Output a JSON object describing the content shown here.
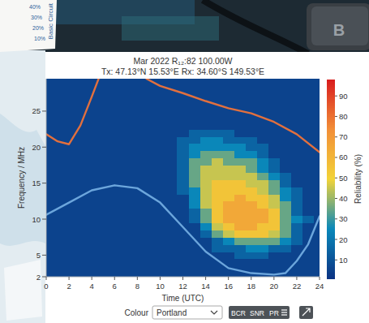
{
  "chart_data": {
    "type": "contour",
    "title": "Mar 2022 R₁₂:82 100.00W",
    "subtitle": "Tx: 47.13°N 15.53°E Rx: 34.60°S 149.53°E",
    "x_label": "Time (UTC)",
    "y_label": "Frequency / MHz",
    "colorbar_title": "Reliability (%)",
    "xlim": [
      0,
      24
    ],
    "ylim": [
      2,
      29.5
    ],
    "xticks": [
      0,
      2,
      4,
      6,
      8,
      10,
      12,
      14,
      16,
      18,
      20,
      22,
      24
    ],
    "yticks": [
      2,
      5,
      10,
      15,
      20,
      25
    ],
    "zlim": [
      1,
      98
    ],
    "zticks": [
      10,
      20,
      30,
      40,
      50,
      60,
      70,
      80,
      90
    ],
    "grid": false,
    "x": [
      0,
      1,
      2,
      3,
      4,
      5,
      6,
      7,
      8,
      9,
      10,
      11,
      12,
      13,
      14,
      15,
      16,
      17,
      18,
      19,
      20,
      21,
      22,
      23,
      24
    ],
    "y": [
      2,
      3,
      4,
      5,
      6,
      7,
      8,
      9,
      10,
      11,
      12,
      13,
      14,
      15,
      16,
      17,
      18,
      19,
      20,
      21,
      22,
      23,
      24,
      25,
      26,
      27,
      28,
      29
    ],
    "z": [
      [
        2,
        2,
        2,
        2,
        2,
        2,
        2,
        2,
        2,
        2,
        2,
        2,
        2,
        2,
        2,
        2,
        2,
        2,
        2,
        2,
        2,
        2,
        2,
        2,
        2
      ],
      [
        2,
        2,
        2,
        2,
        2,
        2,
        2,
        2,
        2,
        2,
        2,
        2,
        2,
        2,
        2,
        2,
        2,
        2,
        2,
        2,
        2,
        2,
        2,
        2,
        2
      ],
      [
        2,
        2,
        2,
        2,
        2,
        2,
        2,
        2,
        2,
        2,
        2,
        2,
        2,
        2,
        2,
        2,
        3,
        4,
        4,
        4,
        3,
        2,
        2,
        2,
        2
      ],
      [
        2,
        2,
        2,
        2,
        2,
        2,
        2,
        2,
        2,
        2,
        2,
        2,
        2,
        2,
        2,
        5,
        8,
        10,
        11,
        10,
        9,
        6,
        3,
        2,
        2
      ],
      [
        2,
        2,
        2,
        2,
        2,
        2,
        2,
        2,
        2,
        2,
        2,
        2,
        2,
        2,
        4,
        10,
        15,
        18,
        20,
        20,
        18,
        13,
        7,
        2,
        2
      ],
      [
        2,
        2,
        2,
        2,
        2,
        2,
        2,
        2,
        2,
        2,
        2,
        2,
        2,
        2,
        8,
        18,
        28,
        32,
        34,
        33,
        30,
        22,
        12,
        4,
        2
      ],
      [
        2,
        2,
        2,
        2,
        2,
        2,
        2,
        2,
        2,
        2,
        2,
        2,
        2,
        2,
        15,
        30,
        45,
        50,
        52,
        50,
        43,
        30,
        16,
        7,
        2
      ],
      [
        2,
        2,
        2,
        2,
        2,
        2,
        2,
        2,
        2,
        2,
        2,
        2,
        2,
        5,
        22,
        42,
        56,
        60,
        61,
        59,
        50,
        34,
        19,
        9,
        3
      ],
      [
        2,
        2,
        2,
        2,
        2,
        2,
        2,
        2,
        2,
        2,
        2,
        2,
        2,
        10,
        30,
        50,
        61,
        63,
        64,
        62,
        52,
        35,
        20,
        10,
        4
      ],
      [
        2,
        2,
        2,
        2,
        2,
        2,
        2,
        2,
        2,
        2,
        2,
        2,
        2,
        15,
        36,
        54,
        62,
        64,
        64,
        61,
        50,
        33,
        19,
        9,
        3
      ],
      [
        2,
        2,
        2,
        2,
        2,
        2,
        2,
        2,
        2,
        2,
        2,
        2,
        2,
        20,
        41,
        55,
        61,
        63,
        62,
        58,
        47,
        30,
        17,
        7,
        2
      ],
      [
        2,
        2,
        2,
        2,
        2,
        2,
        2,
        2,
        2,
        2,
        2,
        2,
        5,
        24,
        43,
        54,
        59,
        61,
        59,
        54,
        42,
        26,
        14,
        5,
        2
      ],
      [
        2,
        2,
        2,
        2,
        2,
        2,
        2,
        2,
        2,
        2,
        2,
        2,
        10,
        27,
        44,
        52,
        55,
        56,
        54,
        48,
        36,
        21,
        10,
        3,
        2
      ],
      [
        2,
        2,
        2,
        2,
        2,
        2,
        2,
        2,
        2,
        2,
        2,
        2,
        13,
        30,
        44,
        50,
        51,
        51,
        48,
        42,
        30,
        16,
        7,
        2,
        2
      ],
      [
        2,
        2,
        2,
        2,
        2,
        2,
        2,
        2,
        2,
        2,
        2,
        5,
        16,
        32,
        43,
        47,
        47,
        46,
        42,
        35,
        24,
        11,
        4,
        2,
        2
      ],
      [
        2,
        2,
        2,
        2,
        2,
        2,
        2,
        2,
        2,
        2,
        2,
        7,
        18,
        33,
        41,
        44,
        43,
        41,
        36,
        29,
        18,
        7,
        2,
        2,
        2
      ],
      [
        2,
        2,
        2,
        2,
        2,
        2,
        2,
        2,
        2,
        2,
        2,
        8,
        19,
        32,
        38,
        40,
        38,
        35,
        30,
        22,
        12,
        4,
        2,
        2,
        2
      ],
      [
        2,
        2,
        2,
        2,
        2,
        2,
        2,
        2,
        2,
        2,
        2,
        7,
        18,
        29,
        34,
        35,
        32,
        28,
        23,
        16,
        7,
        2,
        2,
        2,
        2
      ],
      [
        2,
        2,
        2,
        2,
        2,
        2,
        2,
        2,
        2,
        2,
        2,
        5,
        15,
        24,
        28,
        29,
        25,
        21,
        16,
        10,
        3,
        2,
        2,
        2,
        2
      ],
      [
        2,
        2,
        2,
        2,
        2,
        2,
        2,
        2,
        2,
        2,
        2,
        2,
        11,
        18,
        22,
        22,
        18,
        14,
        10,
        5,
        2,
        2,
        2,
        2,
        2
      ],
      [
        2,
        2,
        2,
        2,
        2,
        2,
        2,
        2,
        2,
        2,
        2,
        2,
        7,
        12,
        15,
        15,
        11,
        8,
        5,
        2,
        2,
        2,
        2,
        2,
        2
      ],
      [
        2,
        2,
        2,
        2,
        2,
        2,
        2,
        2,
        2,
        2,
        2,
        2,
        3,
        6,
        8,
        8,
        5,
        3,
        2,
        2,
        2,
        2,
        2,
        2,
        2
      ],
      [
        2,
        2,
        2,
        2,
        2,
        2,
        2,
        2,
        2,
        2,
        2,
        2,
        2,
        2,
        3,
        3,
        2,
        2,
        2,
        2,
        2,
        2,
        2,
        2,
        2
      ],
      [
        2,
        2,
        2,
        2,
        2,
        2,
        2,
        2,
        2,
        2,
        2,
        2,
        2,
        2,
        2,
        2,
        2,
        2,
        2,
        2,
        2,
        2,
        2,
        2,
        2
      ],
      [
        2,
        2,
        2,
        2,
        2,
        2,
        2,
        2,
        2,
        2,
        2,
        2,
        2,
        2,
        2,
        2,
        2,
        2,
        2,
        2,
        2,
        2,
        2,
        2,
        2
      ],
      [
        2,
        2,
        2,
        2,
        2,
        2,
        2,
        2,
        2,
        2,
        2,
        2,
        2,
        2,
        2,
        2,
        2,
        2,
        2,
        2,
        2,
        2,
        2,
        2,
        2
      ],
      [
        2,
        2,
        2,
        2,
        2,
        2,
        2,
        2,
        2,
        2,
        2,
        2,
        2,
        2,
        2,
        2,
        2,
        2,
        2,
        2,
        2,
        2,
        2,
        2,
        2
      ],
      [
        2,
        2,
        2,
        2,
        2,
        2,
        2,
        2,
        2,
        2,
        2,
        2,
        2,
        2,
        2,
        2,
        2,
        2,
        2,
        2,
        2,
        2,
        2,
        2,
        2
      ]
    ],
    "series": [
      {
        "type": "line",
        "color": "#e2703e",
        "x": [
          0,
          1,
          2,
          3,
          4,
          4.6,
          6.7,
          8.8,
          10,
          12,
          14,
          16,
          18,
          20,
          22,
          24
        ],
        "values": [
          21.8,
          20.8,
          20.4,
          23,
          27,
          29.5,
          null,
          29.5,
          28.5,
          27.5,
          26.4,
          25.4,
          24.7,
          23.5,
          21.8,
          19.3
        ]
      },
      {
        "type": "line",
        "color": "#6ca6dc",
        "x": [
          0,
          2,
          4,
          6,
          8,
          10,
          12,
          14,
          16,
          18,
          20,
          21,
          22,
          23,
          24
        ],
        "values": [
          10.6,
          12.3,
          14,
          14.7,
          14.3,
          12.3,
          8.9,
          5.5,
          3.2,
          2.5,
          2.3,
          2.5,
          4.2,
          6.5,
          10.4
        ]
      }
    ],
    "annotations": [
      "40%",
      "30%",
      "20%",
      "10%",
      "Basic Circuit",
      "B"
    ],
    "controls": [
      "Colour",
      "Portland",
      "BCR",
      "SNR",
      "PR"
    ]
  }
}
